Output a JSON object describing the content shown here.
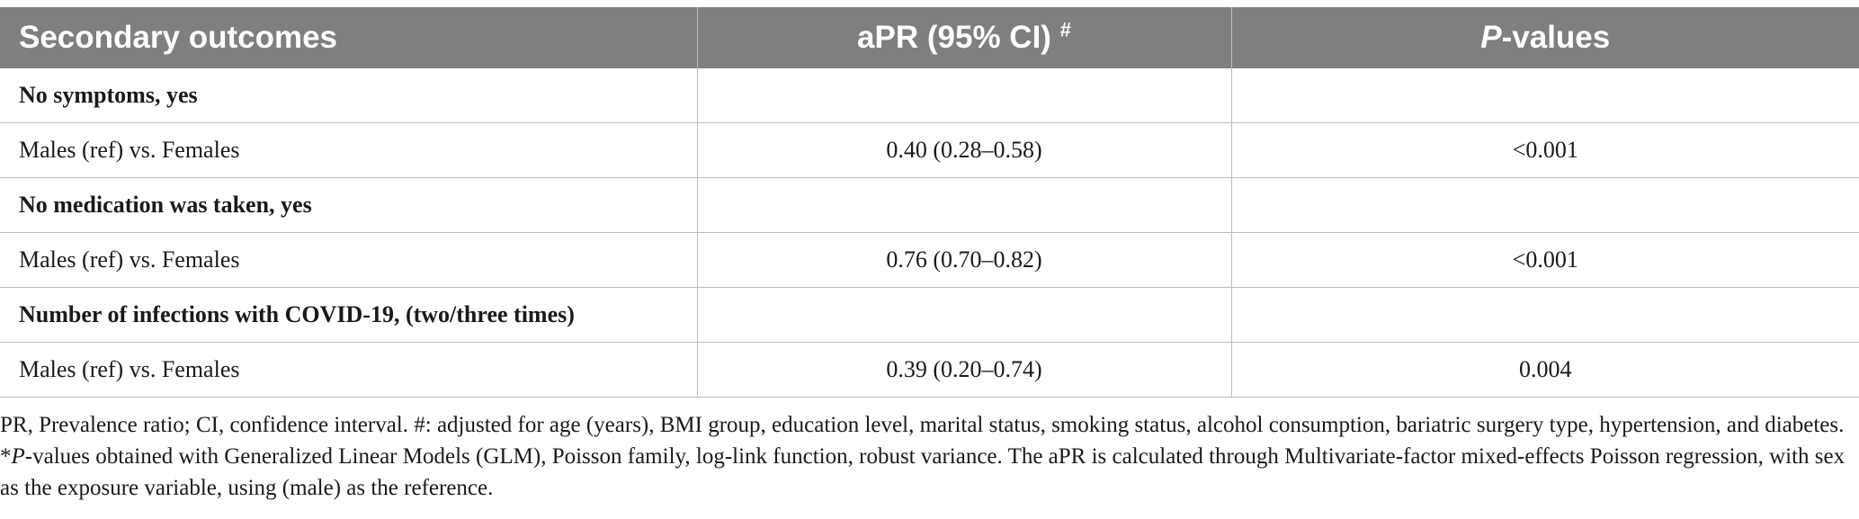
{
  "table": {
    "header": {
      "col1": "Secondary outcomes",
      "col2": "aPR (95% CI)",
      "col2_sup": "#",
      "col3_italic": "P",
      "col3_rest": "-values"
    },
    "rows": [
      {
        "label": "No symptoms, yes",
        "apr": "",
        "p": "",
        "section": true
      },
      {
        "label": "Males (ref) vs. Females",
        "apr": "0.40 (0.28–0.58)",
        "p": "<0.001",
        "section": false
      },
      {
        "label": "No medication was taken, yes",
        "apr": "",
        "p": "",
        "section": true
      },
      {
        "label": "Males (ref) vs. Females",
        "apr": "0.76 (0.70–0.82)",
        "p": "<0.001",
        "section": false
      },
      {
        "label": "Number of infections with COVID-19, (two/three times)",
        "apr": "",
        "p": "",
        "section": true
      },
      {
        "label": "Males (ref) vs. Females",
        "apr": "0.39 (0.20–0.74)",
        "p": "0.004",
        "section": false
      }
    ]
  },
  "footnote": {
    "part1": "PR, Prevalence ratio; CI, confidence interval. #: adjusted for age (years), BMI group, education level, marital status, smoking status, alcohol consumption, bariatric surgery type, hypertension, and diabetes. *",
    "italic_p": "P",
    "part2": "-values obtained with Generalized Linear Models (GLM), Poisson family, log-link function, robust variance. The aPR is calculated through Multivariate-factor mixed-effects Poisson regression, with sex as the exposure variable, using (male) as the reference."
  },
  "colors": {
    "header_bg": "#7f7f7e",
    "header_text": "#ffffff",
    "border": "#bdbdbd"
  }
}
